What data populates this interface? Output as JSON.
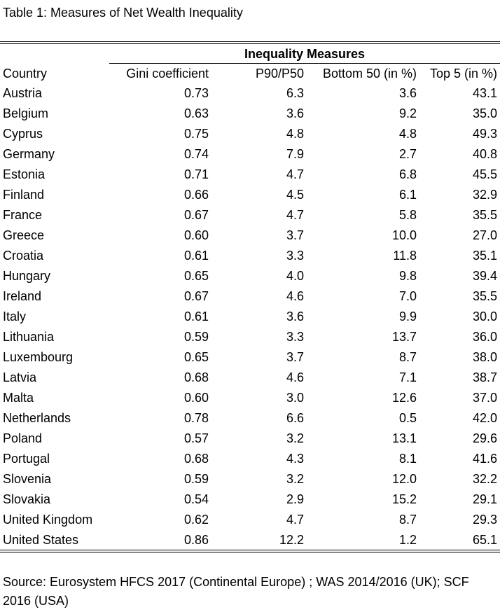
{
  "caption": "Table 1: Measures of Net Wealth Inequality",
  "group_header": "Inequality Measures",
  "columns": [
    "Country",
    "Gini coefficient",
    "P90/P50",
    "Bottom 50 (in %)",
    "Top 5 (in %)"
  ],
  "rows": [
    {
      "country": "Austria",
      "gini": "0.73",
      "p90p50": "6.3",
      "bottom50": "3.6",
      "top5": "43.1"
    },
    {
      "country": "Belgium",
      "gini": "0.63",
      "p90p50": "3.6",
      "bottom50": "9.2",
      "top5": "35.0"
    },
    {
      "country": "Cyprus",
      "gini": "0.75",
      "p90p50": "4.8",
      "bottom50": "4.8",
      "top5": "49.3"
    },
    {
      "country": "Germany",
      "gini": "0.74",
      "p90p50": "7.9",
      "bottom50": "2.7",
      "top5": "40.8"
    },
    {
      "country": "Estonia",
      "gini": "0.71",
      "p90p50": "4.7",
      "bottom50": "6.8",
      "top5": "45.5"
    },
    {
      "country": "Finland",
      "gini": "0.66",
      "p90p50": "4.5",
      "bottom50": "6.1",
      "top5": "32.9"
    },
    {
      "country": "France",
      "gini": "0.67",
      "p90p50": "4.7",
      "bottom50": "5.8",
      "top5": "35.5"
    },
    {
      "country": "Greece",
      "gini": "0.60",
      "p90p50": "3.7",
      "bottom50": "10.0",
      "top5": "27.0"
    },
    {
      "country": "Croatia",
      "gini": "0.61",
      "p90p50": "3.3",
      "bottom50": "11.8",
      "top5": "35.1"
    },
    {
      "country": "Hungary",
      "gini": "0.65",
      "p90p50": "4.0",
      "bottom50": "9.8",
      "top5": "39.4"
    },
    {
      "country": "Ireland",
      "gini": "0.67",
      "p90p50": "4.6",
      "bottom50": "7.0",
      "top5": "35.5"
    },
    {
      "country": "Italy",
      "gini": "0.61",
      "p90p50": "3.6",
      "bottom50": "9.9",
      "top5": "30.0"
    },
    {
      "country": "Lithuania",
      "gini": "0.59",
      "p90p50": "3.3",
      "bottom50": "13.7",
      "top5": "36.0"
    },
    {
      "country": "Luxembourg",
      "gini": "0.65",
      "p90p50": "3.7",
      "bottom50": "8.7",
      "top5": "38.0"
    },
    {
      "country": "Latvia",
      "gini": "0.68",
      "p90p50": "4.6",
      "bottom50": "7.1",
      "top5": "38.7"
    },
    {
      "country": "Malta",
      "gini": "0.60",
      "p90p50": "3.0",
      "bottom50": "12.6",
      "top5": "37.0"
    },
    {
      "country": "Netherlands",
      "gini": "0.78",
      "p90p50": "6.6",
      "bottom50": "0.5",
      "top5": "42.0"
    },
    {
      "country": "Poland",
      "gini": "0.57",
      "p90p50": "3.2",
      "bottom50": "13.1",
      "top5": "29.6"
    },
    {
      "country": "Portugal",
      "gini": "0.68",
      "p90p50": "4.3",
      "bottom50": "8.1",
      "top5": "41.6"
    },
    {
      "country": "Slovenia",
      "gini": "0.59",
      "p90p50": "3.2",
      "bottom50": "12.0",
      "top5": "32.2"
    },
    {
      "country": "Slovakia",
      "gini": "0.54",
      "p90p50": "2.9",
      "bottom50": "15.2",
      "top5": "29.1"
    },
    {
      "country": "United Kingdom",
      "gini": "0.62",
      "p90p50": "4.7",
      "bottom50": "8.7",
      "top5": "29.3"
    },
    {
      "country": "United States",
      "gini": "0.86",
      "p90p50": "12.2",
      "bottom50": "1.2",
      "top5": "65.1"
    }
  ],
  "source": "Source: Eurosystem HFCS 2017 (Continental Europe) ; WAS 2014/2016 (UK); SCF 2016 (USA)"
}
